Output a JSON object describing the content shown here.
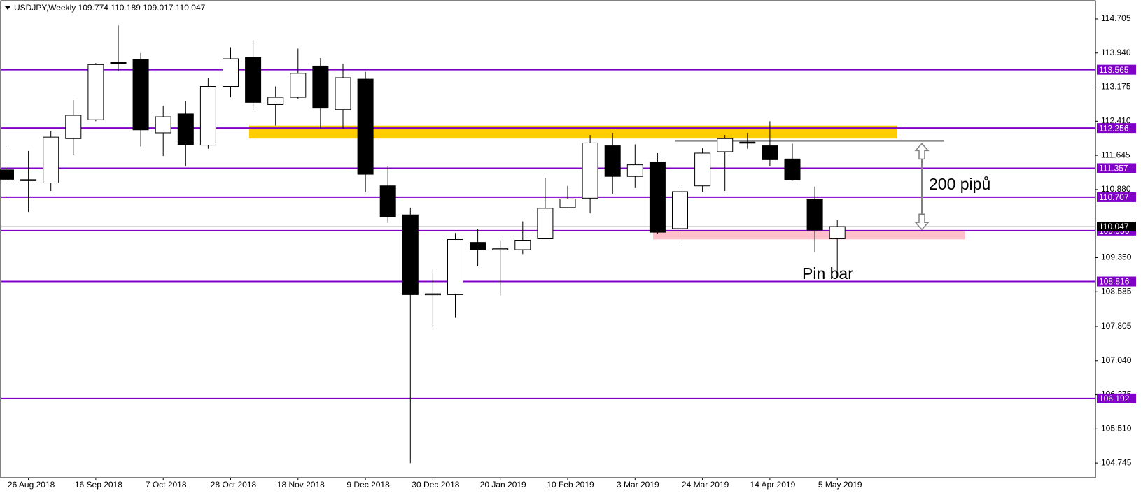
{
  "chart_data": {
    "type": "candlestick",
    "title": "USDJPY,Weekly  109.774 110.189 109.017 110.047",
    "categories": [
      null,
      "26 Aug 2018",
      null,
      null,
      "16 Sep 2018",
      null,
      null,
      "7 Oct 2018",
      null,
      null,
      "28 Oct 2018",
      null,
      null,
      "18 Nov 2018",
      null,
      null,
      "9 Dec 2018",
      null,
      null,
      "30 Dec 2018",
      null,
      null,
      "20 Jan 2019",
      null,
      null,
      "10 Feb 2019",
      null,
      null,
      "3 Mar 2019",
      null,
      null,
      "24 Mar 2019",
      null,
      null,
      "14 Apr 2019",
      null,
      null,
      "5 May 2019"
    ],
    "open": [
      111.319,
      111.1,
      111.027,
      112.019,
      112.442,
      113.73,
      113.794,
      112.149,
      112.573,
      111.873,
      113.191,
      113.842,
      112.784,
      112.947,
      113.647,
      112.67,
      113.354,
      110.961,
      110.31,
      108.52,
      108.52,
      109.692,
      109.54,
      109.529,
      109.773,
      110.473,
      110.685,
      111.857,
      111.173,
      111.498,
      110.001,
      110.961,
      111.726,
      111.94,
      111.857,
      111.563,
      110.652,
      109.774
    ],
    "high": [
      111.857,
      111.743,
      112.182,
      112.882,
      113.713,
      114.559,
      113.94,
      112.752,
      112.866,
      113.37,
      114.07,
      114.233,
      113.191,
      114.038,
      113.826,
      113.696,
      113.517,
      111.401,
      110.473,
      109.09,
      109.903,
      109.985,
      109.741,
      110.164,
      111.14,
      110.961,
      112.101,
      112.149,
      111.889,
      111.694,
      110.978,
      111.808,
      112.101,
      112.149,
      112.41,
      111.906,
      110.945,
      110.189
    ],
    "low": [
      110.717,
      110.375,
      110.847,
      111.661,
      112.41,
      113.533,
      111.84,
      111.629,
      111.401,
      111.792,
      112.947,
      112.654,
      112.312,
      112.915,
      112.247,
      112.247,
      110.815,
      110.131,
      104.744,
      107.787,
      107.999,
      109.155,
      108.503,
      109.431,
      109.773,
      110.457,
      110.343,
      110.782,
      110.912,
      109.887,
      109.708,
      110.831,
      110.847,
      111.792,
      111.401,
      111.075,
      109.48,
      109.017
    ],
    "close": [
      111.108,
      111.09,
      112.052,
      112.54,
      113.68,
      113.72,
      112.215,
      112.508,
      111.889,
      113.191,
      113.81,
      112.833,
      112.947,
      113.484,
      112.703,
      113.387,
      111.222,
      110.261,
      108.52,
      108.54,
      109.757,
      109.529,
      109.55,
      109.741,
      110.457,
      110.668,
      111.922,
      111.173,
      111.433,
      109.92,
      110.831,
      111.694,
      112.019,
      111.93,
      111.547,
      111.091,
      109.969,
      110.047
    ],
    "up_color": "#ffffff",
    "down_color": "#000000",
    "ylim": [
      104.418,
      115.112
    ],
    "yticks": [
      114.705,
      {
        "value": 113.94,
        "label": "113.940"
      },
      113.175,
      {
        "value": 112.41,
        "label": "112.410"
      },
      111.645,
      {
        "value": 110.88,
        "label": "110.880"
      },
      {
        "value": 109.35,
        "label": "109.350"
      },
      108.585,
      107.805,
      {
        "value": 107.04,
        "label": "107.040"
      },
      106.275,
      {
        "value": 105.51,
        "label": "105.510"
      },
      104.745
    ],
    "levels": [
      113.565,
      112.256,
      111.357,
      110.707,
      109.956,
      108.816,
      106.192
    ],
    "level_color": "#8000c8",
    "zones": [
      {
        "ylim": [
          112.02,
          112.31
        ],
        "color": "#ffcc00"
      },
      {
        "ylim": [
          109.76,
          109.95
        ],
        "color": "#ffc0cb"
      }
    ],
    "resistance_line": 111.97,
    "annotations": [
      "200 pipů",
      "Pin bar"
    ]
  }
}
